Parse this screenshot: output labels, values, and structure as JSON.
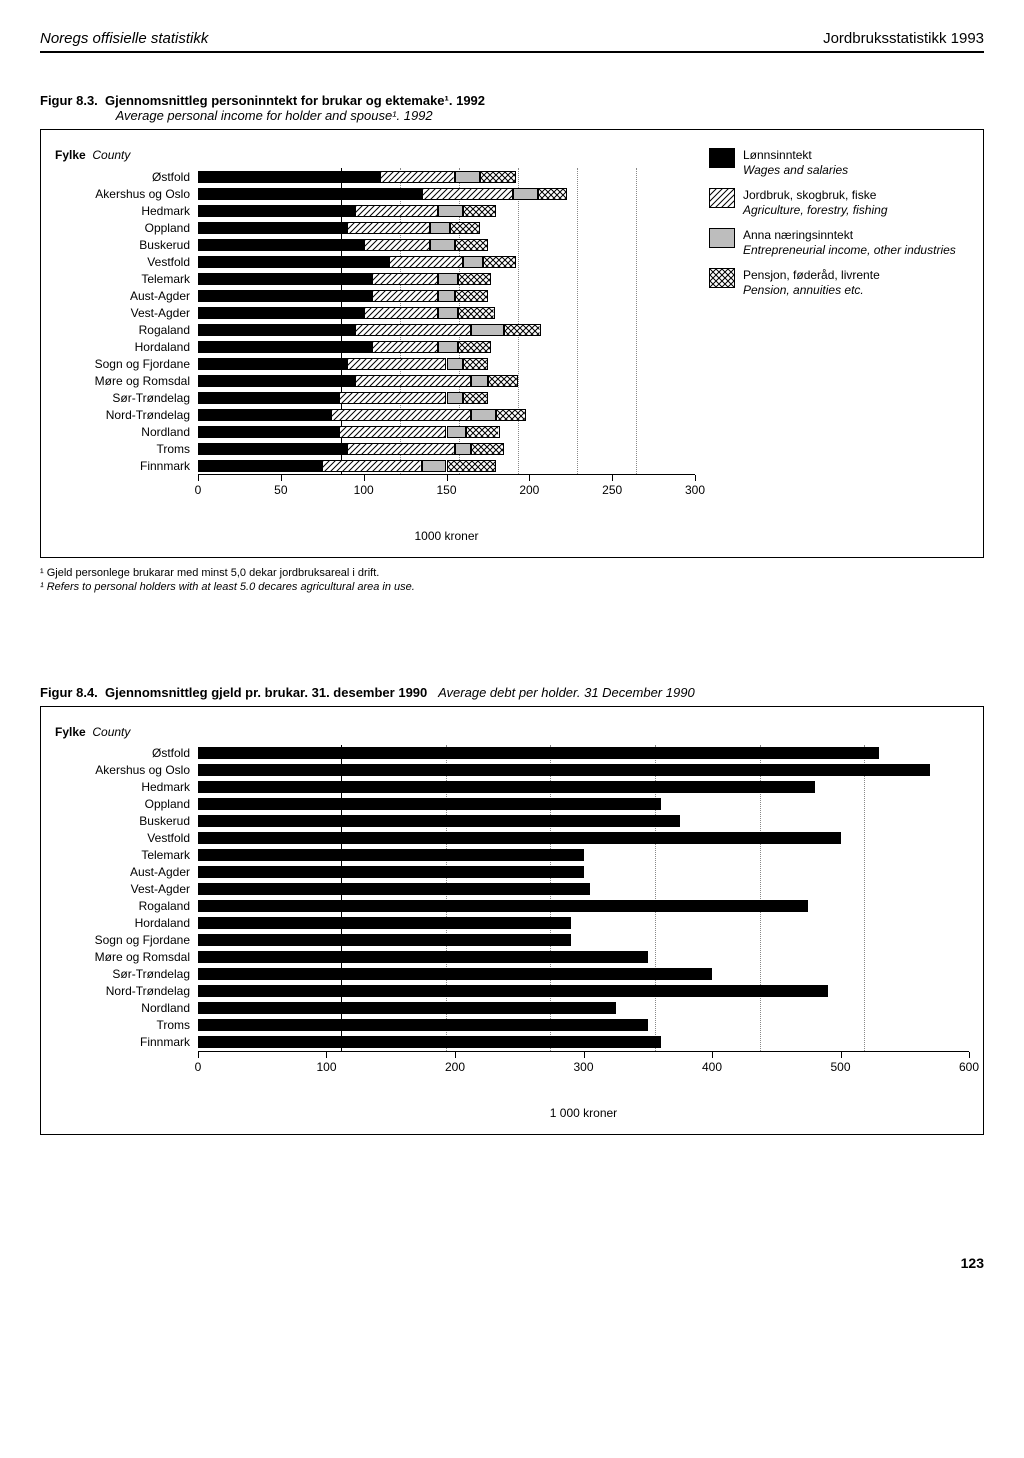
{
  "header": {
    "left": "Noregs offisielle statistikk",
    "right": "Jordbruksstatistikk 1993"
  },
  "fig83": {
    "number": "Figur 8.3.",
    "title_bold": "Gjennomsnittleg personinntekt for brukar og ektemake¹. 1992",
    "title_italic": "Average personal income for holder and spouse¹. 1992",
    "axis_label_no": "Fylke",
    "axis_label_en": "County",
    "x_unit": "1000 kroner",
    "xmax": 300,
    "xticks": [
      0,
      50,
      100,
      150,
      200,
      250,
      300
    ],
    "grid_at": [
      50,
      100,
      150,
      200,
      250
    ],
    "legend": [
      {
        "label_no": "Lønnsinntekt",
        "label_en": "Wages and salaries",
        "fill": "solid"
      },
      {
        "label_no": "Jordbruk, skogbruk, fiske",
        "label_en": "Agriculture, forestry, fishing",
        "fill": "hatch"
      },
      {
        "label_no": "Anna næringsinntekt",
        "label_en": "Entrepreneurial income, other industries",
        "fill": "gray"
      },
      {
        "label_no": "Pensjon, føderåd, livrente",
        "label_en": "Pension, annuities etc.",
        "fill": "cross"
      }
    ],
    "categories": [
      {
        "name": "Østfold",
        "seg": [
          110,
          45,
          15,
          22
        ]
      },
      {
        "name": "Akershus og Oslo",
        "seg": [
          135,
          55,
          15,
          18
        ]
      },
      {
        "name": "Hedmark",
        "seg": [
          95,
          50,
          15,
          20
        ]
      },
      {
        "name": "Oppland",
        "seg": [
          90,
          50,
          12,
          18
        ]
      },
      {
        "name": "Buskerud",
        "seg": [
          100,
          40,
          15,
          20
        ]
      },
      {
        "name": "Vestfold",
        "seg": [
          115,
          45,
          12,
          20
        ]
      },
      {
        "name": "Telemark",
        "seg": [
          105,
          40,
          12,
          20
        ]
      },
      {
        "name": "Aust-Agder",
        "seg": [
          105,
          40,
          10,
          20
        ]
      },
      {
        "name": "Vest-Agder",
        "seg": [
          100,
          45,
          12,
          22
        ]
      },
      {
        "name": "Rogaland",
        "seg": [
          95,
          70,
          20,
          22
        ]
      },
      {
        "name": "Hordaland",
        "seg": [
          105,
          40,
          12,
          20
        ]
      },
      {
        "name": "Sogn og Fjordane",
        "seg": [
          90,
          60,
          10,
          15
        ]
      },
      {
        "name": "Møre og Romsdal",
        "seg": [
          95,
          70,
          10,
          18
        ]
      },
      {
        "name": "Sør-Trøndelag",
        "seg": [
          85,
          65,
          10,
          15
        ]
      },
      {
        "name": "Nord-Trøndelag",
        "seg": [
          80,
          85,
          15,
          18
        ]
      },
      {
        "name": "Nordland",
        "seg": [
          85,
          65,
          12,
          20
        ]
      },
      {
        "name": "Troms",
        "seg": [
          90,
          65,
          10,
          20
        ]
      },
      {
        "name": "Finnmark",
        "seg": [
          75,
          60,
          15,
          30
        ]
      }
    ],
    "colors": {
      "solid": "#000000",
      "gray": "#bdbdbd"
    },
    "footnote_no": "¹ Gjeld personlege brukarar med minst 5,0 dekar jordbruksareal i drift.",
    "footnote_en": "¹ Refers to personal holders with at least 5.0 decares agricultural area in use."
  },
  "fig84": {
    "number": "Figur 8.4.",
    "title_bold": "Gjennomsnittleg gjeld pr. brukar. 31. desember 1990",
    "title_italic": "Average debt per holder. 31 December 1990",
    "axis_label_no": "Fylke",
    "axis_label_en": "County",
    "x_unit": "1 000 kroner",
    "xmax": 600,
    "xticks": [
      0,
      100,
      200,
      300,
      400,
      500,
      600
    ],
    "grid_at": [
      100,
      200,
      300,
      400,
      500
    ],
    "categories": [
      {
        "name": "Østfold",
        "value": 530
      },
      {
        "name": "Akershus og Oslo",
        "value": 570
      },
      {
        "name": "Hedmark",
        "value": 480
      },
      {
        "name": "Oppland",
        "value": 360
      },
      {
        "name": "Buskerud",
        "value": 375
      },
      {
        "name": "Vestfold",
        "value": 500
      },
      {
        "name": "Telemark",
        "value": 300
      },
      {
        "name": "Aust-Agder",
        "value": 300
      },
      {
        "name": "Vest-Agder",
        "value": 305
      },
      {
        "name": "Rogaland",
        "value": 475
      },
      {
        "name": "Hordaland",
        "value": 290
      },
      {
        "name": "Sogn og Fjordane",
        "value": 290
      },
      {
        "name": "Møre og Romsdal",
        "value": 350
      },
      {
        "name": "Sør-Trøndelag",
        "value": 400
      },
      {
        "name": "Nord-Trøndelag",
        "value": 490
      },
      {
        "name": "Nordland",
        "value": 325
      },
      {
        "name": "Troms",
        "value": 350
      },
      {
        "name": "Finnmark",
        "value": 360
      }
    ],
    "bar_color": "#000000"
  },
  "pagenum": "123"
}
